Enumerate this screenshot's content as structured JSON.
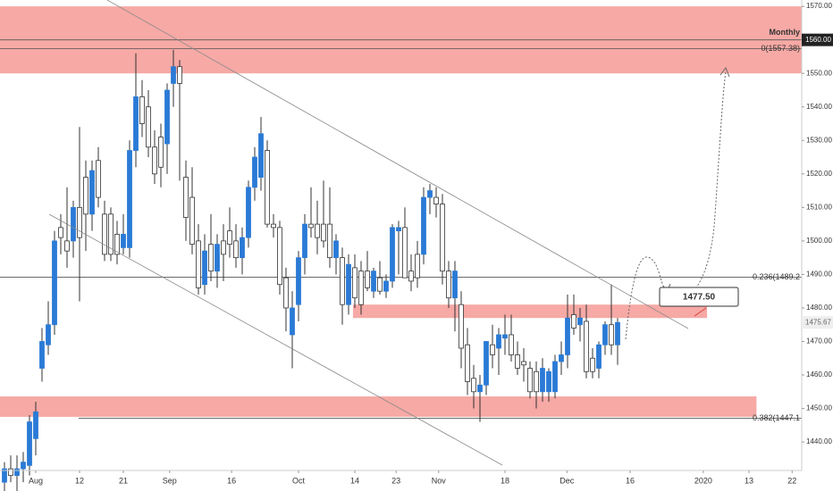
{
  "chart_data": {
    "type": "candlestick",
    "up_color": "#2a7ad6",
    "down_color": "#ffffff",
    "edge_color": "#333333",
    "zone_color": "#f6a9a5",
    "xlim": [
      -0.714,
      127.43
    ],
    "ylim": [
      1431.5,
      1571.9
    ],
    "yticks": [
      {
        "value": 1440,
        "label": "1440.00"
      },
      {
        "value": 1450,
        "label": "1450.00"
      },
      {
        "value": 1460,
        "label": "1460.00"
      },
      {
        "value": 1470,
        "label": "1470.00"
      },
      {
        "value": 1480,
        "label": "1480.00"
      },
      {
        "value": 1490,
        "label": "1490.00"
      },
      {
        "value": 1500,
        "label": "1500.00"
      },
      {
        "value": 1510,
        "label": "1510.00"
      },
      {
        "value": 1520,
        "label": "1520.00"
      },
      {
        "value": 1530,
        "label": "1530.00"
      },
      {
        "value": 1540,
        "label": "1540.00"
      },
      {
        "value": 1550,
        "label": "1550.00"
      },
      {
        "value": 1570,
        "label": "1570.00"
      }
    ],
    "xticks": [
      {
        "value": 5,
        "label": "Aug"
      },
      {
        "value": 12,
        "label": "12"
      },
      {
        "value": 19,
        "label": "21"
      },
      {
        "value": 26.4,
        "label": "Sep"
      },
      {
        "value": 36.3,
        "label": "16"
      },
      {
        "value": 47,
        "label": "Oct"
      },
      {
        "value": 56,
        "label": "14"
      },
      {
        "value": 62.6,
        "label": "23"
      },
      {
        "value": 69.4,
        "label": "Nov"
      },
      {
        "value": 80,
        "label": "18"
      },
      {
        "value": 89.9,
        "label": "Dec"
      },
      {
        "value": 100,
        "label": "16"
      },
      {
        "value": 111.7,
        "label": "2020"
      },
      {
        "value": 119,
        "label": "13"
      },
      {
        "value": 125.9,
        "label": "22"
      }
    ],
    "ohlc": [
      [
        1428,
        1434,
        1425,
        1432
      ],
      [
        1432,
        1436,
        1428,
        1430
      ],
      [
        1430,
        1436,
        1425,
        1432
      ],
      [
        1432,
        1437,
        1428,
        1434
      ],
      [
        1433,
        1448,
        1430,
        1446
      ],
      [
        1441,
        1452,
        1436,
        1449
      ],
      [
        1462,
        1474,
        1458,
        1470
      ],
      [
        1469,
        1482,
        1466,
        1475
      ],
      [
        1475,
        1503,
        1472,
        1500
      ],
      [
        1504,
        1508,
        1496,
        1501
      ],
      [
        1500,
        1516,
        1492,
        1497
      ],
      [
        1500,
        1512,
        1495,
        1510
      ],
      [
        1510,
        1534,
        1482,
        1501
      ],
      [
        1519,
        1524,
        1497,
        1508
      ],
      [
        1508,
        1524,
        1503,
        1521
      ],
      [
        1524,
        1528,
        1510,
        1513
      ],
      [
        1508,
        1512,
        1494,
        1496
      ],
      [
        1508,
        1510,
        1494,
        1496
      ],
      [
        1502,
        1506,
        1493,
        1496
      ],
      [
        1498,
        1508,
        1496,
        1502
      ],
      [
        1498,
        1530,
        1495,
        1527
      ],
      [
        1527,
        1556,
        1522,
        1543
      ],
      [
        1543,
        1548,
        1531,
        1535
      ],
      [
        1540,
        1545,
        1525,
        1528
      ],
      [
        1528,
        1533,
        1517,
        1520
      ],
      [
        1531,
        1535,
        1516,
        1522
      ],
      [
        1529,
        1547,
        1520,
        1545
      ],
      [
        1547,
        1557,
        1540,
        1552
      ],
      [
        1552,
        1554,
        1518,
        1547
      ],
      [
        1519,
        1524,
        1500,
        1507
      ],
      [
        1513,
        1522,
        1496,
        1499
      ],
      [
        1500,
        1505,
        1484,
        1486
      ],
      [
        1487,
        1502,
        1484,
        1497
      ],
      [
        1499,
        1508,
        1488,
        1491
      ],
      [
        1491,
        1502,
        1486,
        1499
      ],
      [
        1500,
        1505,
        1488,
        1496
      ],
      [
        1503,
        1510,
        1495,
        1499
      ],
      [
        1500,
        1505,
        1492,
        1495
      ],
      [
        1495,
        1504,
        1490,
        1501
      ],
      [
        1501,
        1518,
        1498,
        1516
      ],
      [
        1516,
        1528,
        1512,
        1525
      ],
      [
        1519,
        1537,
        1515,
        1532
      ],
      [
        1527,
        1530,
        1504,
        1505
      ],
      [
        1505,
        1508,
        1501,
        1504
      ],
      [
        1504,
        1506,
        1484,
        1487
      ],
      [
        1489,
        1492,
        1473,
        1480
      ],
      [
        1472,
        1485,
        1462,
        1480
      ],
      [
        1481,
        1497,
        1476,
        1495
      ],
      [
        1495,
        1508,
        1490,
        1505
      ],
      [
        1505,
        1516,
        1501,
        1504
      ],
      [
        1505,
        1512,
        1496,
        1501
      ],
      [
        1505,
        1518,
        1498,
        1500
      ],
      [
        1505,
        1516,
        1492,
        1495
      ],
      [
        1495,
        1502,
        1490,
        1500
      ],
      [
        1495,
        1498,
        1475,
        1481
      ],
      [
        1481,
        1496,
        1478,
        1493
      ],
      [
        1492,
        1496,
        1480,
        1483
      ],
      [
        1491,
        1494,
        1478,
        1481
      ],
      [
        1491,
        1497,
        1485,
        1486
      ],
      [
        1485,
        1492,
        1483,
        1491
      ],
      [
        1489,
        1494,
        1484,
        1485
      ],
      [
        1485,
        1490,
        1483,
        1488
      ],
      [
        1488,
        1505,
        1486,
        1504
      ],
      [
        1503,
        1506,
        1490,
        1504
      ],
      [
        1504,
        1510,
        1489,
        1489
      ],
      [
        1491,
        1496,
        1485,
        1488
      ],
      [
        1496,
        1500,
        1486,
        1489
      ],
      [
        1496,
        1516,
        1493,
        1513
      ],
      [
        1513,
        1517,
        1508,
        1515
      ],
      [
        1513,
        1516,
        1507,
        1511
      ],
      [
        1511,
        1514,
        1487,
        1491
      ],
      [
        1491,
        1494,
        1480,
        1483
      ],
      [
        1483,
        1494,
        1473,
        1491
      ],
      [
        1481,
        1485,
        1462,
        1468
      ],
      [
        1469,
        1474,
        1454,
        1458
      ],
      [
        1459,
        1463,
        1450,
        1455
      ],
      [
        1455,
        1460,
        1446,
        1457
      ],
      [
        1457,
        1470,
        1454,
        1470
      ],
      [
        1469,
        1475,
        1462,
        1466
      ],
      [
        1468,
        1474,
        1460,
        1472
      ],
      [
        1471,
        1478,
        1466,
        1472
      ],
      [
        1472,
        1478,
        1464,
        1466
      ],
      [
        1466,
        1470,
        1460,
        1462
      ],
      [
        1464,
        1468,
        1458,
        1463
      ],
      [
        1462,
        1464,
        1453,
        1455
      ],
      [
        1461,
        1464,
        1450,
        1455
      ],
      [
        1455,
        1465,
        1452,
        1462
      ],
      [
        1455,
        1462,
        1452,
        1461
      ],
      [
        1455,
        1466,
        1453,
        1464
      ],
      [
        1464,
        1470,
        1460,
        1466
      ],
      [
        1466,
        1484,
        1462,
        1477
      ],
      [
        1478,
        1484,
        1472,
        1474
      ],
      [
        1475,
        1480,
        1470,
        1477
      ],
      [
        1476,
        1481,
        1459,
        1461
      ],
      [
        1465,
        1468,
        1459,
        1461
      ],
      [
        1462,
        1470,
        1459,
        1469
      ],
      [
        1469,
        1476,
        1466,
        1475
      ],
      [
        1475,
        1487,
        1466,
        1469
      ],
      [
        1469,
        1477,
        1463,
        1475.67
      ]
    ],
    "zones": [
      {
        "x": [
          -0.714,
          127.43
        ],
        "y": [
          1550,
          1570
        ]
      },
      {
        "x": [
          55.7,
          112.3
        ],
        "y": [
          1477,
          1481
        ]
      },
      {
        "x": [
          -0.714,
          120.2
        ],
        "y": [
          1447.5,
          1453.6
        ]
      }
    ],
    "levels": [
      {
        "value": 1560,
        "label": "Monthly"
      },
      {
        "value": 1557.38,
        "label": "0(1557.38)"
      },
      {
        "value": 1489.2,
        "label": "0.236(1489.2"
      },
      {
        "value": 1447.1,
        "label": "0.382(1447.1"
      }
    ],
    "axis_box": {
      "value": 1560,
      "label": "1560.00"
    },
    "target_box": {
      "value": 1477.5,
      "label": "1477.50"
    },
    "last_price": {
      "value": 1475.67,
      "label": "1475.67"
    }
  }
}
